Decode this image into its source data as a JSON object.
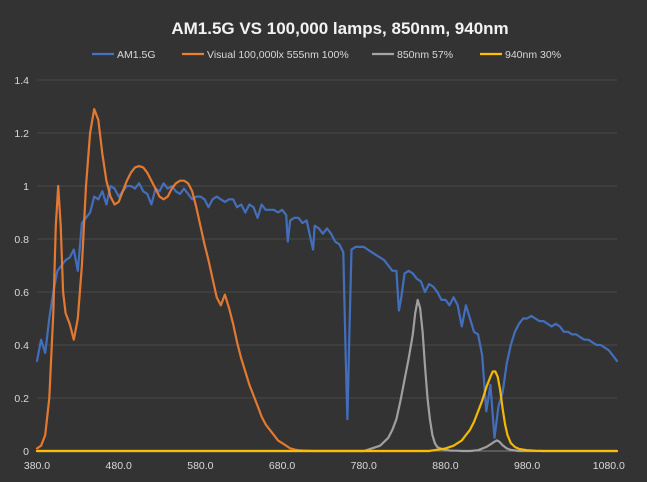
{
  "chart_data": {
    "type": "line",
    "title": "AM1.5G VS 100,000 lamps, 850nm, 940nm",
    "xlabel": "",
    "ylabel": "",
    "xlim": [
      380,
      1090
    ],
    "ylim": [
      0,
      1.4
    ],
    "x_ticks": [
      "380.0",
      "480.0",
      "580.0",
      "680.0",
      "780.0",
      "880.0",
      "980.0",
      "1080.0"
    ],
    "y_ticks": [
      "0",
      "0.2",
      "0.4",
      "0.6",
      "0.8",
      "1",
      "1.2",
      "1.4"
    ],
    "grid": true,
    "legend_position": "top",
    "series": [
      {
        "name": "AM1.5G",
        "color": "#4472c4",
        "x": [
          380,
          385,
          390,
          395,
          400,
          405,
          410,
          415,
          420,
          425,
          430,
          435,
          440,
          445,
          450,
          455,
          460,
          465,
          470,
          475,
          480,
          485,
          490,
          495,
          500,
          505,
          510,
          515,
          520,
          525,
          530,
          535,
          540,
          545,
          550,
          555,
          560,
          565,
          570,
          575,
          580,
          585,
          590,
          595,
          600,
          605,
          610,
          615,
          620,
          625,
          630,
          635,
          640,
          645,
          650,
          655,
          660,
          665,
          670,
          675,
          680,
          685,
          687,
          690,
          695,
          700,
          705,
          710,
          715,
          718,
          720,
          725,
          730,
          735,
          740,
          745,
          750,
          755,
          758,
          760,
          762,
          765,
          770,
          775,
          780,
          785,
          790,
          795,
          800,
          805,
          810,
          815,
          820,
          823,
          826,
          830,
          835,
          840,
          845,
          850,
          855,
          860,
          865,
          870,
          875,
          880,
          885,
          890,
          895,
          900,
          905,
          910,
          915,
          920,
          925,
          930,
          935,
          940,
          945,
          950,
          955,
          960,
          965,
          970,
          975,
          980,
          985,
          990,
          995,
          1000,
          1005,
          1010,
          1015,
          1020,
          1025,
          1030,
          1035,
          1040,
          1045,
          1050,
          1055,
          1060,
          1065,
          1070,
          1075,
          1080,
          1085,
          1090
        ],
        "values": [
          0.34,
          0.42,
          0.37,
          0.5,
          0.6,
          0.68,
          0.7,
          0.72,
          0.73,
          0.76,
          0.68,
          0.86,
          0.88,
          0.9,
          0.96,
          0.95,
          0.98,
          0.93,
          1.0,
          0.99,
          0.96,
          0.98,
          1.0,
          1.0,
          0.99,
          1.01,
          0.98,
          0.97,
          0.93,
          0.99,
          0.98,
          1.01,
          0.99,
          1.0,
          0.98,
          0.97,
          0.99,
          0.97,
          0.95,
          0.96,
          0.96,
          0.95,
          0.92,
          0.95,
          0.96,
          0.95,
          0.94,
          0.95,
          0.95,
          0.92,
          0.93,
          0.9,
          0.93,
          0.92,
          0.88,
          0.93,
          0.91,
          0.91,
          0.91,
          0.9,
          0.91,
          0.89,
          0.79,
          0.87,
          0.88,
          0.88,
          0.86,
          0.87,
          0.8,
          0.76,
          0.85,
          0.84,
          0.82,
          0.84,
          0.82,
          0.79,
          0.78,
          0.75,
          0.34,
          0.12,
          0.4,
          0.76,
          0.77,
          0.77,
          0.77,
          0.76,
          0.75,
          0.74,
          0.73,
          0.72,
          0.7,
          0.68,
          0.68,
          0.53,
          0.58,
          0.67,
          0.68,
          0.67,
          0.65,
          0.64,
          0.6,
          0.63,
          0.62,
          0.6,
          0.57,
          0.57,
          0.55,
          0.58,
          0.55,
          0.47,
          0.55,
          0.5,
          0.45,
          0.44,
          0.36,
          0.15,
          0.25,
          0.05,
          0.17,
          0.22,
          0.33,
          0.4,
          0.45,
          0.48,
          0.5,
          0.5,
          0.51,
          0.5,
          0.49,
          0.49,
          0.48,
          0.47,
          0.48,
          0.47,
          0.45,
          0.45,
          0.44,
          0.44,
          0.43,
          0.42,
          0.42,
          0.41,
          0.4,
          0.4,
          0.39,
          0.38,
          0.36,
          0.34
        ]
      },
      {
        "name": "Visual 100,000lx 555nm 100%",
        "color": "#ed7d31",
        "x": [
          380,
          385,
          390,
          395,
          400,
          403,
          406,
          409,
          412,
          415,
          420,
          425,
          430,
          435,
          440,
          445,
          450,
          455,
          460,
          465,
          470,
          475,
          480,
          485,
          490,
          495,
          500,
          505,
          510,
          515,
          520,
          525,
          530,
          535,
          540,
          545,
          550,
          555,
          560,
          565,
          570,
          575,
          580,
          585,
          590,
          595,
          600,
          605,
          610,
          615,
          620,
          625,
          630,
          635,
          640,
          645,
          650,
          655,
          660,
          665,
          670,
          675,
          680,
          685,
          690,
          693,
          696,
          700,
          705,
          710,
          720,
          730,
          740,
          750,
          760,
          770,
          780,
          790,
          800,
          810,
          820,
          830,
          840,
          850,
          860
        ],
        "values": [
          0.01,
          0.02,
          0.06,
          0.2,
          0.52,
          0.85,
          1.0,
          0.85,
          0.6,
          0.52,
          0.48,
          0.42,
          0.5,
          0.7,
          1.0,
          1.2,
          1.29,
          1.25,
          1.12,
          1.02,
          0.96,
          0.93,
          0.94,
          0.98,
          1.02,
          1.05,
          1.07,
          1.075,
          1.07,
          1.05,
          1.02,
          0.99,
          0.96,
          0.95,
          0.96,
          0.99,
          1.01,
          1.02,
          1.02,
          1.01,
          0.98,
          0.92,
          0.85,
          0.78,
          0.72,
          0.65,
          0.58,
          0.55,
          0.59,
          0.54,
          0.48,
          0.41,
          0.35,
          0.3,
          0.25,
          0.21,
          0.17,
          0.13,
          0.1,
          0.08,
          0.06,
          0.04,
          0.03,
          0.02,
          0.01,
          0.008,
          0.005,
          0.003,
          0.002,
          0.001,
          0.0,
          0.0,
          0.0,
          0.0,
          0.0,
          0.0,
          0.0,
          0.0,
          0.0,
          0.0,
          0.0,
          0.0,
          0.0,
          0.0,
          0.0
        ]
      },
      {
        "name": "850nm 57%",
        "color": "#a5a5a5",
        "x": [
          380,
          780,
          790,
          800,
          810,
          815,
          820,
          825,
          830,
          835,
          840,
          843,
          846,
          849,
          852,
          855,
          858,
          861,
          864,
          867,
          870,
          875,
          880,
          885,
          890,
          895,
          900,
          910,
          920,
          930,
          935,
          940,
          943,
          946,
          950,
          955,
          960,
          970,
          1000,
          1090
        ],
        "values": [
          0.0,
          0.0,
          0.01,
          0.02,
          0.05,
          0.08,
          0.12,
          0.19,
          0.27,
          0.35,
          0.44,
          0.52,
          0.57,
          0.54,
          0.45,
          0.32,
          0.2,
          0.12,
          0.06,
          0.03,
          0.015,
          0.008,
          0.004,
          0.002,
          0.001,
          0.001,
          0.0,
          0.0,
          0.003,
          0.015,
          0.025,
          0.035,
          0.04,
          0.035,
          0.022,
          0.01,
          0.004,
          0.0,
          0.0,
          0.0
        ]
      },
      {
        "name": "940nm 30%",
        "color": "#ffc000",
        "x": [
          380,
          840,
          860,
          880,
          890,
          900,
          905,
          910,
          915,
          920,
          925,
          930,
          935,
          938,
          941,
          944,
          947,
          950,
          953,
          956,
          960,
          965,
          970,
          980,
          990,
          1000,
          1090
        ],
        "values": [
          0.0,
          0.0,
          0.0,
          0.01,
          0.02,
          0.04,
          0.06,
          0.08,
          0.11,
          0.15,
          0.19,
          0.24,
          0.28,
          0.3,
          0.3,
          0.28,
          0.23,
          0.16,
          0.1,
          0.06,
          0.03,
          0.015,
          0.008,
          0.003,
          0.001,
          0.0,
          0.0
        ]
      }
    ]
  }
}
